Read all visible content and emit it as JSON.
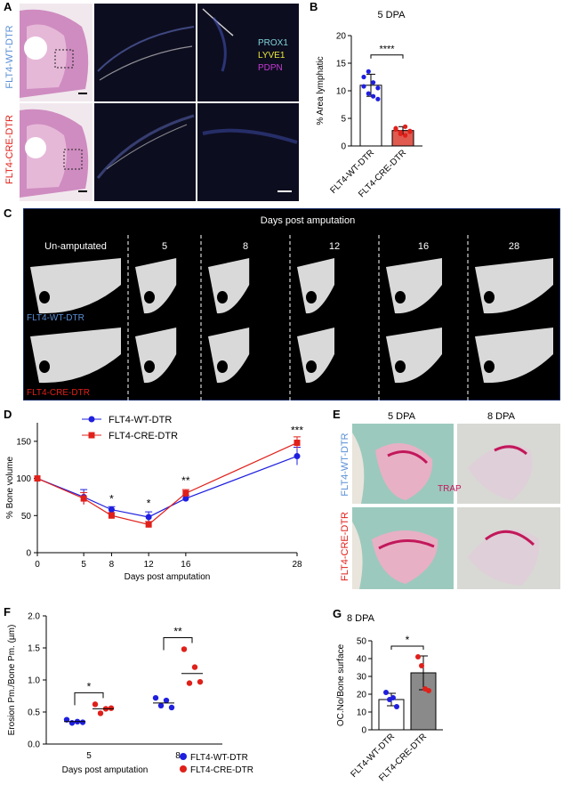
{
  "colors": {
    "wt_blue": "#1f1fe0",
    "cre_red": "#e0201a",
    "wt_label_blue": "#5a8fd6",
    "cre_label_red": "#e0201a",
    "if_bg": "#0d0d20",
    "ct_bg": "#000000",
    "ct_border": "#1e3a8a",
    "bar_grey": "#8a8a8a",
    "bar_red": "#e05a50",
    "trap_pink": "#c2185b"
  },
  "panel_A": {
    "letter": "A",
    "row_labels": [
      "FLT4-WT-DTR",
      "FLT4-CRE-DTR"
    ],
    "legend": [
      {
        "label": "PROX1",
        "color": "#7fd3d8"
      },
      {
        "label": "LYVE1",
        "color": "#e8e83a"
      },
      {
        "label": "PDPN",
        "color": "#c33ad1"
      }
    ]
  },
  "panel_B": {
    "letter": "B",
    "chart_data": {
      "type": "bar",
      "title": "5 DPA",
      "ylabel": "% Area lymphatic",
      "ylim": [
        0,
        20
      ],
      "yticks": [
        "0",
        "5",
        "10",
        "15",
        "20"
      ],
      "categories": [
        "FLT4-WT-DTR",
        "FLT4-CRE-DTR"
      ],
      "values": [
        11,
        2.8
      ],
      "errors": [
        2.0,
        0.7
      ],
      "points": [
        [
          10.8,
          9.5,
          11.5,
          8.5,
          12.5,
          13.5,
          9,
          10.5
        ],
        [
          3.2,
          2.5,
          1.9,
          2.7,
          3.0,
          2.2,
          3.5,
          2.6
        ]
      ],
      "significance": "****"
    }
  },
  "panel_C": {
    "letter": "C",
    "header": "Days post amputation",
    "columns": [
      "Un-amputated",
      "5",
      "8",
      "12",
      "16",
      "28"
    ],
    "row_labels": [
      "FLT4-WT-DTR",
      "FLT4-CRE-DTR"
    ]
  },
  "panel_D": {
    "letter": "D",
    "chart_data": {
      "type": "line",
      "ylabel": "% Bone volume",
      "xlabel": "Days post amputation",
      "x": [
        0,
        5,
        8,
        12,
        16,
        28
      ],
      "xticks": [
        "0",
        "5",
        "8",
        "12",
        "16",
        "28"
      ],
      "yticks": [
        "0",
        "50",
        "100",
        "150"
      ],
      "xlim": [
        0,
        28
      ],
      "ylim": [
        0,
        175
      ],
      "series": [
        {
          "name": "FLT4-WT-DTR",
          "values": [
            100,
            75,
            58,
            48,
            73,
            130
          ],
          "errors": [
            0,
            10,
            4,
            7,
            4,
            12
          ]
        },
        {
          "name": "FLT4-CRE-DTR",
          "values": [
            100,
            73,
            50,
            38,
            80,
            148
          ],
          "errors": [
            0,
            8,
            4,
            4,
            5,
            8
          ]
        }
      ],
      "annotations": [
        {
          "x": 8,
          "y": 68,
          "text": "*"
        },
        {
          "x": 12,
          "y": 62,
          "text": "*"
        },
        {
          "x": 16,
          "y": 92,
          "text": "**"
        },
        {
          "x": 28,
          "y": 160,
          "text": "***"
        }
      ]
    }
  },
  "panel_E": {
    "letter": "E",
    "columns": [
      "5 DPA",
      "8 DPA"
    ],
    "row_labels": [
      "FLT4-WT-DTR",
      "FLT4-CRE-DTR"
    ],
    "stain_label": "TRAP"
  },
  "panel_F": {
    "letter": "F",
    "chart_data": {
      "type": "scatter",
      "ylabel": "Erosion  Pm./Bone Pm. (µm)",
      "xlabel": "Days post amputation",
      "categories": [
        "5",
        "8"
      ],
      "yticks": [
        "0.0",
        "0.5",
        "1.0",
        "1.5",
        "2.0"
      ],
      "ylim": [
        0,
        2.0
      ],
      "series": [
        {
          "name": "FLT4-WT-DTR",
          "points": [
            [
              0.38,
              0.33,
              0.35,
              0.34
            ],
            [
              0.72,
              0.6,
              0.68,
              0.57
            ]
          ],
          "means": [
            0.35,
            0.64
          ]
        },
        {
          "name": "FLT4-CRE-DTR",
          "points": [
            [
              0.62,
              0.48,
              0.55,
              0.56
            ],
            [
              1.48,
              0.95,
              1.2,
              0.97
            ]
          ],
          "means": [
            0.55,
            1.1
          ]
        }
      ],
      "significance": [
        "*",
        "**"
      ]
    }
  },
  "panel_G": {
    "letter": "G",
    "chart_data": {
      "type": "bar",
      "title": "8 DPA",
      "ylabel": "OC.No/Bone surface",
      "ylim": [
        0,
        50
      ],
      "yticks": [
        "0",
        "10",
        "20",
        "30",
        "40",
        "50"
      ],
      "categories": [
        "FLT4-WT-DTR",
        "FLT4-CRE-DTR"
      ],
      "values": [
        17,
        32
      ],
      "errors": [
        3.5,
        9.5
      ],
      "points": [
        [
          21,
          17,
          18,
          13
        ],
        [
          41,
          36,
          23,
          22
        ]
      ],
      "significance": "*"
    }
  }
}
